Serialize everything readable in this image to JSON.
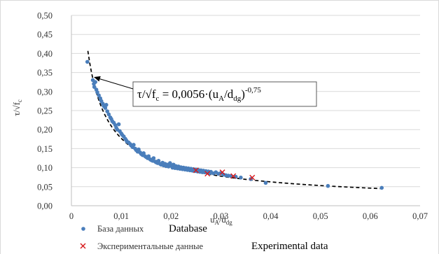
{
  "chart_data": {
    "type": "scatter",
    "title": "",
    "xlabel": {
      "base": "u",
      "sub1": "A",
      "mid": "/d",
      "sub2": "dg"
    },
    "ylabel": {
      "base": "τ/√f",
      "sub": "c"
    },
    "xlim": [
      0,
      0.07
    ],
    "ylim": [
      0,
      0.5
    ],
    "x_ticks": [
      {
        "v": 0,
        "label": "0"
      },
      {
        "v": 0.01,
        "label": "0,01"
      },
      {
        "v": 0.02,
        "label": "0,02"
      },
      {
        "v": 0.03,
        "label": "0,03"
      },
      {
        "v": 0.04,
        "label": "0,04"
      },
      {
        "v": 0.05,
        "label": "0,05"
      },
      {
        "v": 0.06,
        "label": "0,06"
      },
      {
        "v": 0.07,
        "label": "0,07"
      }
    ],
    "y_ticks": [
      {
        "v": 0,
        "label": "0,00"
      },
      {
        "v": 0.05,
        "label": "0,05"
      },
      {
        "v": 0.1,
        "label": "0,10"
      },
      {
        "v": 0.15,
        "label": "0,15"
      },
      {
        "v": 0.2,
        "label": "0,20"
      },
      {
        "v": 0.25,
        "label": "0,25"
      },
      {
        "v": 0.3,
        "label": "0,30"
      },
      {
        "v": 0.35,
        "label": "0,35"
      },
      {
        "v": 0.4,
        "label": "0,40"
      },
      {
        "v": 0.45,
        "label": "0,45"
      },
      {
        "v": 0.5,
        "label": "0,50"
      }
    ],
    "grid": "horizontal",
    "legend_position": "bottom-left",
    "series": [
      {
        "name": "База данных Database",
        "marker": "circle",
        "color": "#4a7ebb",
        "points": [
          [
            0.0032,
            0.378
          ],
          [
            0.0043,
            0.33
          ],
          [
            0.0045,
            0.32
          ],
          [
            0.0046,
            0.312
          ],
          [
            0.0048,
            0.325
          ],
          [
            0.005,
            0.305
          ],
          [
            0.0052,
            0.298
          ],
          [
            0.0055,
            0.29
          ],
          [
            0.0058,
            0.282
          ],
          [
            0.006,
            0.275
          ],
          [
            0.0063,
            0.268
          ],
          [
            0.0065,
            0.262
          ],
          [
            0.0068,
            0.257
          ],
          [
            0.007,
            0.265
          ],
          [
            0.0072,
            0.248
          ],
          [
            0.0075,
            0.24
          ],
          [
            0.0078,
            0.232
          ],
          [
            0.008,
            0.228
          ],
          [
            0.0082,
            0.222
          ],
          [
            0.0085,
            0.218
          ],
          [
            0.0088,
            0.212
          ],
          [
            0.009,
            0.205
          ],
          [
            0.0092,
            0.2
          ],
          [
            0.0095,
            0.214
          ],
          [
            0.0097,
            0.196
          ],
          [
            0.01,
            0.19
          ],
          [
            0.0102,
            0.186
          ],
          [
            0.0105,
            0.182
          ],
          [
            0.0108,
            0.176
          ],
          [
            0.011,
            0.172
          ],
          [
            0.0112,
            0.168
          ],
          [
            0.0115,
            0.166
          ],
          [
            0.0118,
            0.162
          ],
          [
            0.012,
            0.158
          ],
          [
            0.0123,
            0.154
          ],
          [
            0.0125,
            0.16
          ],
          [
            0.0128,
            0.15
          ],
          [
            0.013,
            0.146
          ],
          [
            0.0133,
            0.142
          ],
          [
            0.0135,
            0.148
          ],
          [
            0.0138,
            0.14
          ],
          [
            0.014,
            0.136
          ],
          [
            0.0143,
            0.133
          ],
          [
            0.0145,
            0.138
          ],
          [
            0.0148,
            0.13
          ],
          [
            0.015,
            0.128
          ],
          [
            0.0153,
            0.125
          ],
          [
            0.0155,
            0.13
          ],
          [
            0.0158,
            0.122
          ],
          [
            0.016,
            0.12
          ],
          [
            0.0163,
            0.118
          ],
          [
            0.0165,
            0.125
          ],
          [
            0.0168,
            0.116
          ],
          [
            0.017,
            0.114
          ],
          [
            0.0173,
            0.112
          ],
          [
            0.0175,
            0.118
          ],
          [
            0.0178,
            0.11
          ],
          [
            0.018,
            0.108
          ],
          [
            0.0183,
            0.113
          ],
          [
            0.0185,
            0.106
          ],
          [
            0.0188,
            0.11
          ],
          [
            0.019,
            0.104
          ],
          [
            0.0193,
            0.108
          ],
          [
            0.0195,
            0.103
          ],
          [
            0.0198,
            0.112
          ],
          [
            0.02,
            0.105
          ],
          [
            0.0203,
            0.1
          ],
          [
            0.0205,
            0.108
          ],
          [
            0.0208,
            0.099
          ],
          [
            0.021,
            0.104
          ],
          [
            0.0213,
            0.098
          ],
          [
            0.0215,
            0.103
          ],
          [
            0.0218,
            0.097
          ],
          [
            0.022,
            0.101
          ],
          [
            0.0223,
            0.096
          ],
          [
            0.0225,
            0.1
          ],
          [
            0.0228,
            0.095
          ],
          [
            0.023,
            0.099
          ],
          [
            0.0233,
            0.094
          ],
          [
            0.0235,
            0.098
          ],
          [
            0.0238,
            0.093
          ],
          [
            0.024,
            0.097
          ],
          [
            0.0243,
            0.092
          ],
          [
            0.0245,
            0.096
          ],
          [
            0.0248,
            0.091
          ],
          [
            0.025,
            0.095
          ],
          [
            0.0253,
            0.09
          ],
          [
            0.0255,
            0.094
          ],
          [
            0.0258,
            0.089
          ],
          [
            0.026,
            0.093
          ],
          [
            0.0263,
            0.088
          ],
          [
            0.0265,
            0.092
          ],
          [
            0.0268,
            0.088
          ],
          [
            0.027,
            0.091
          ],
          [
            0.0273,
            0.087
          ],
          [
            0.0275,
            0.09
          ],
          [
            0.0278,
            0.086
          ],
          [
            0.028,
            0.089
          ],
          [
            0.0285,
            0.085
          ],
          [
            0.029,
            0.088
          ],
          [
            0.0295,
            0.084
          ],
          [
            0.03,
            0.086
          ],
          [
            0.0305,
            0.082
          ],
          [
            0.031,
            0.08
          ],
          [
            0.0315,
            0.079
          ],
          [
            0.032,
            0.078
          ],
          [
            0.033,
            0.076
          ],
          [
            0.034,
            0.074
          ],
          [
            0.036,
            0.07
          ],
          [
            0.039,
            0.06
          ],
          [
            0.0515,
            0.052
          ],
          [
            0.0623,
            0.047
          ]
        ]
      },
      {
        "name": "Экспериментальные данные Experimental data",
        "marker": "x",
        "color": "#d7191c",
        "points": [
          [
            0.025,
            0.093
          ],
          [
            0.0273,
            0.084
          ],
          [
            0.0303,
            0.088
          ],
          [
            0.0325,
            0.078
          ],
          [
            0.0363,
            0.074
          ]
        ]
      }
    ],
    "trendline": {
      "style": "dashed",
      "color": "#000000",
      "coef": 0.0056,
      "exponent": -0.75,
      "x_range": [
        0.0033,
        0.062
      ]
    },
    "annotation": {
      "lhs_base": "τ/√f",
      "lhs_sub": "c",
      "rhs_prefix": " = 0,0056·(u",
      "rhs_sub1": "A",
      "rhs_mid": "/d",
      "rhs_sub2": "dg",
      "rhs_close": ")",
      "rhs_sup": "-0,75",
      "arrow_to": [
        0.0045,
        0.338
      ]
    },
    "legend": [
      {
        "ru": "База данных",
        "en": "Database"
      },
      {
        "ru": "Экспериментальные данные",
        "en": "Experimental data"
      }
    ]
  }
}
